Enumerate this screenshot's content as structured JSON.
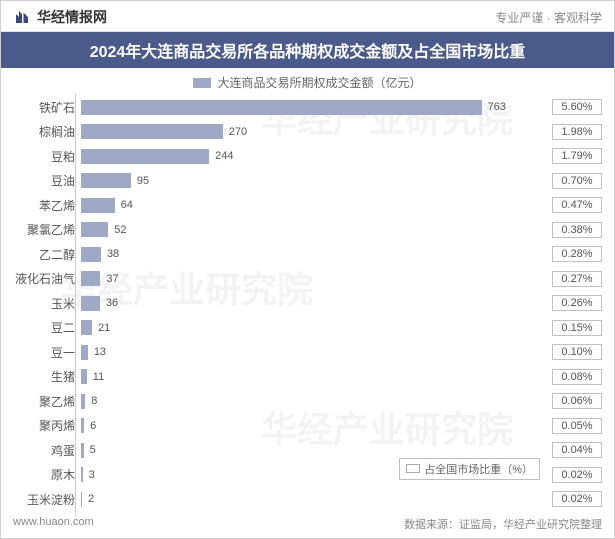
{
  "brand": {
    "name": "华经情报网",
    "tagline": "专业严谨 · 客观科学",
    "logo_fill": "#3a4a7a"
  },
  "title": "2024年大连商品交易所各品种期权成交金额及占全国市场比重",
  "legend": {
    "primary": "大连商品交易所期权成交金额（亿元）",
    "secondary": "占全国市场比重（%）"
  },
  "chart": {
    "type": "bar",
    "orientation": "horizontal",
    "bar_color": "#9fa8c4",
    "background_color": "#ffffff",
    "axis_color": "#cccccc",
    "label_fontsize": 12,
    "value_fontsize": 11,
    "max_value": 800,
    "categories": [
      "铁矿石",
      "棕榈油",
      "豆粕",
      "豆油",
      "苯乙烯",
      "聚氯乙烯",
      "乙二醇",
      "液化石油气",
      "玉米",
      "豆二",
      "豆一",
      "生猪",
      "聚乙烯",
      "聚丙烯",
      "鸡蛋",
      "原木",
      "玉米淀粉"
    ],
    "values": [
      763,
      270,
      244,
      95,
      64,
      52,
      38,
      37,
      36,
      21,
      13,
      11,
      8,
      6,
      5,
      3,
      2
    ],
    "percentages": [
      "5.60%",
      "1.98%",
      "1.79%",
      "0.70%",
      "0.47%",
      "0.38%",
      "0.28%",
      "0.27%",
      "0.26%",
      "0.15%",
      "0.10%",
      "0.08%",
      "0.06%",
      "0.05%",
      "0.04%",
      "0.02%",
      "0.02%"
    ]
  },
  "footer": {
    "url": "www.huaon.com",
    "source": "数据来源：证监局，华经产业研究院整理"
  },
  "watermark": "华经产业研究院"
}
